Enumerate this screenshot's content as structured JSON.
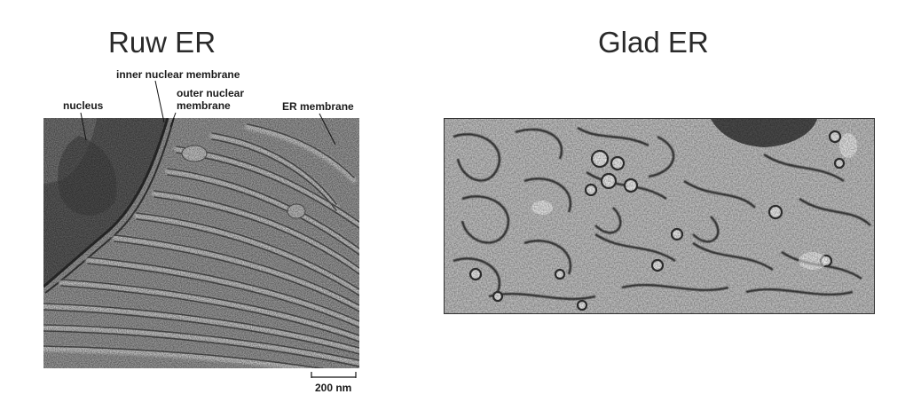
{
  "titles": {
    "rough": "Ruw ER",
    "smooth": "Glad ER"
  },
  "labels": {
    "inner_nuclear_membrane": "inner nuclear membrane",
    "nucleus": "nucleus",
    "outer_nuclear_membrane_line1": "outer nuclear",
    "outer_nuclear_membrane_line2": "membrane",
    "er_membrane": "ER membrane"
  },
  "scale_bar": {
    "label": "200 nm"
  }
}
